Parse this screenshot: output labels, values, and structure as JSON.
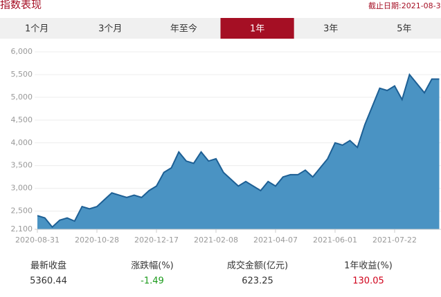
{
  "header": {
    "title": "指数表现",
    "date": "截止日期:2021-08-3"
  },
  "tabs": {
    "items": [
      "1个月",
      "3个月",
      "年至今",
      "1年",
      "3年",
      "5年"
    ],
    "active": 3
  },
  "chart_data": {
    "type": "area",
    "categories": [
      "2020-08-31",
      null,
      null,
      null,
      null,
      null,
      null,
      null,
      "2020-10-28",
      null,
      null,
      null,
      null,
      null,
      null,
      null,
      "2020-12-17",
      null,
      null,
      null,
      null,
      null,
      null,
      null,
      "2021-02-08",
      null,
      null,
      null,
      null,
      null,
      null,
      null,
      "2021-04-07",
      null,
      null,
      null,
      null,
      null,
      null,
      null,
      "2021-06-01",
      null,
      null,
      null,
      null,
      null,
      null,
      null,
      "2021-07-22",
      null,
      null,
      null,
      null,
      null,
      null
    ],
    "values": [
      2400,
      2350,
      2150,
      2300,
      2350,
      2280,
      2600,
      2550,
      2600,
      2750,
      2900,
      2850,
      2800,
      2850,
      2800,
      2950,
      3050,
      3350,
      3450,
      3800,
      3600,
      3550,
      3800,
      3600,
      3650,
      3350,
      3200,
      3050,
      3150,
      3050,
      2950,
      3150,
      3050,
      3250,
      3300,
      3300,
      3400,
      3250,
      3450,
      3650,
      4000,
      3950,
      4050,
      3900,
      4400,
      4800,
      5200,
      5150,
      5250,
      4950,
      5500,
      5300,
      5100,
      5400,
      5400
    ],
    "color": "#4a93c3",
    "line_color": "#1d5f94",
    "ylim": [
      2100,
      6000
    ],
    "yticks": [
      {
        "value": 2100,
        "label": "2,100"
      },
      {
        "value": 2500,
        "label": "2,500"
      },
      {
        "value": 3000,
        "label": "3,000"
      },
      {
        "value": 3500,
        "label": "3,500"
      },
      {
        "value": 4000,
        "label": "4,000"
      },
      {
        "value": 4500,
        "label": "4,500"
      },
      {
        "value": 5000,
        "label": "5,000"
      },
      {
        "value": 5500,
        "label": "5,500"
      },
      {
        "value": 6000,
        "label": "6,000"
      }
    ],
    "grid": true
  },
  "stats": [
    {
      "label": "最新收盘",
      "value": 5360.44,
      "color": "#333333"
    },
    {
      "label": "涨跌幅(%)",
      "value": -1.49,
      "color": "#1a9a1a"
    },
    {
      "label": "成交金额(亿元)",
      "value": 623.25,
      "color": "#333333"
    },
    {
      "label": "1年收益(%)",
      "value": 130.05,
      "color": "#d0021b"
    }
  ]
}
